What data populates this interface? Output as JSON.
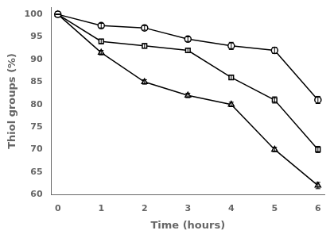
{
  "chart_data": {
    "type": "line",
    "xlabel": "Time (hours)",
    "ylabel": "Thiol groups (%)",
    "x": [
      0,
      1,
      2,
      3,
      4,
      5,
      6
    ],
    "series": [
      {
        "color": "#000000",
        "marker": "circle",
        "line_style": "solid",
        "values": [
          100,
          97.5,
          97.0,
          94.5,
          93.0,
          92.0,
          81.0
        ],
        "errors": [
          0.0,
          0.5,
          0.5,
          0.5,
          0.8,
          0.7,
          0.8
        ]
      },
      {
        "color": "#000000",
        "marker": "square",
        "line_style": "solid",
        "values": [
          100,
          94.0,
          93.0,
          92.0,
          86.0,
          81.0,
          70.0
        ],
        "errors": [
          0.0,
          0.5,
          0.5,
          0.5,
          0.5,
          0.7,
          0.7
        ]
      },
      {
        "color": "#000000",
        "marker": "triangle",
        "line_style": "solid",
        "values": [
          100,
          91.5,
          85.0,
          82.0,
          80.0,
          70.0,
          62.0
        ],
        "errors": [
          0.0,
          0.5,
          0.5,
          0.5,
          0.5,
          0.5,
          0.7
        ]
      }
    ],
    "xlim": [
      -0.15,
      6.15
    ],
    "ylim": [
      60,
      101.5
    ],
    "xticks": [
      0,
      1,
      2,
      3,
      4,
      5,
      6
    ],
    "yticks": [
      60,
      65,
      70,
      75,
      80,
      85,
      90,
      95,
      100
    ],
    "grid": false
  }
}
